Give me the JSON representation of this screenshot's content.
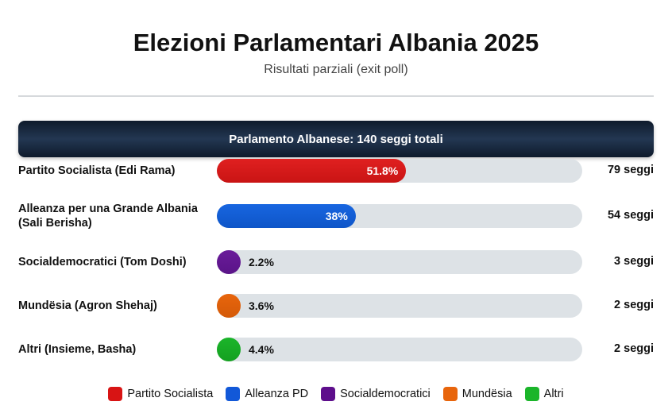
{
  "chart_data": {
    "type": "bar",
    "title": "Elezioni Parlamentari Albania 2025",
    "subtitle": "Risultati parziali (exit poll)",
    "banner": "Parlamento Albanese: 140 seggi totali",
    "xlim": [
      0,
      100
    ],
    "parties": [
      {
        "label": "Partito Socialista (Edi Rama)",
        "value": 51.8,
        "pct_label": "51.8%",
        "seats_label": "79 seggi",
        "color": "#e02020",
        "color_dark": "#c91414"
      },
      {
        "label": "Alleanza per una Grande Albania (Sali Berisha)",
        "value": 38,
        "pct_label": "38%",
        "seats_label": "54 seggi",
        "color": "#1866e0",
        "color_dark": "#0e55c8"
      },
      {
        "label": "Socialdemocratici (Tom Doshi)",
        "value": 2.2,
        "pct_label": "2.2%",
        "seats_label": "3 seggi",
        "color": "#6a1b9a",
        "color_dark": "#5a1488"
      },
      {
        "label": "Mundësia (Agron Shehaj)",
        "value": 3.6,
        "pct_label": "3.6%",
        "seats_label": "2 seggi",
        "color": "#e8650c",
        "color_dark": "#d45a08"
      },
      {
        "label": "Altri (Insieme, Basha)",
        "value": 4.4,
        "pct_label": "4.4%",
        "seats_label": "2 seggi",
        "color": "#1bb52a",
        "color_dark": "#14a020"
      }
    ],
    "legend": [
      {
        "label": "Partito Socialista",
        "color": "#d81414"
      },
      {
        "label": "Alleanza PD",
        "color": "#1258d8"
      },
      {
        "label": "Socialdemocratici",
        "color": "#5e0f8c"
      },
      {
        "label": "Mundësia",
        "color": "#e8650c"
      },
      {
        "label": "Altri",
        "color": "#1bb52a"
      }
    ],
    "legend_position": "bottom"
  }
}
